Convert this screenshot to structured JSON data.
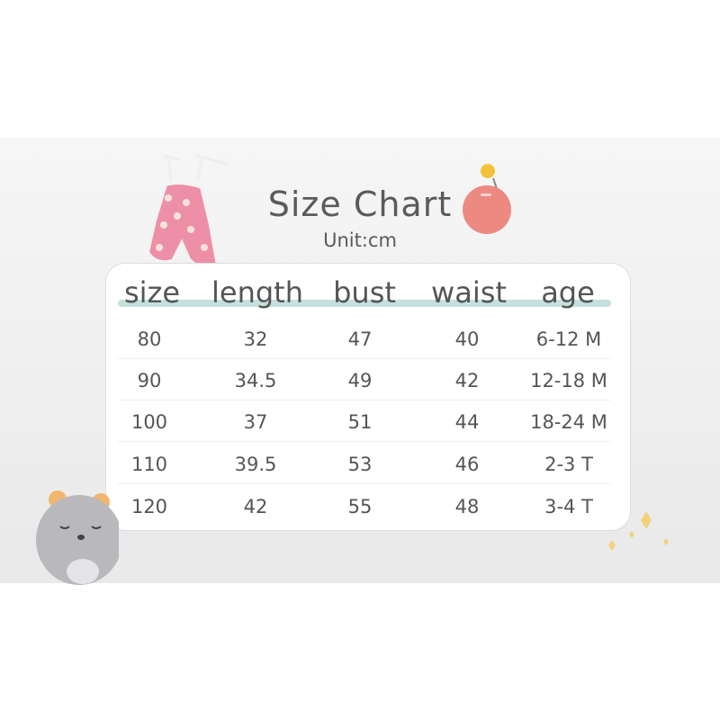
{
  "title": "Size Chart",
  "unit": "Unit:cm",
  "headers": [
    "size",
    "length",
    "bust",
    "waist",
    "age"
  ],
  "rows": [
    [
      "80",
      "32",
      "47",
      "40",
      "6-12 M"
    ],
    [
      "90",
      "34.5",
      "49",
      "42",
      "12-18 M"
    ],
    [
      "100",
      "37",
      "51",
      "44",
      "18-24 M"
    ],
    [
      "110",
      "39.5",
      "53",
      "46",
      "2-3 T"
    ],
    [
      "120",
      "42",
      "55",
      "48",
      "3-4 T"
    ]
  ],
  "colors": {
    "header_underline": "#c5e0dd",
    "apple": "#ec8a82",
    "dress": "#ee8fa8"
  }
}
